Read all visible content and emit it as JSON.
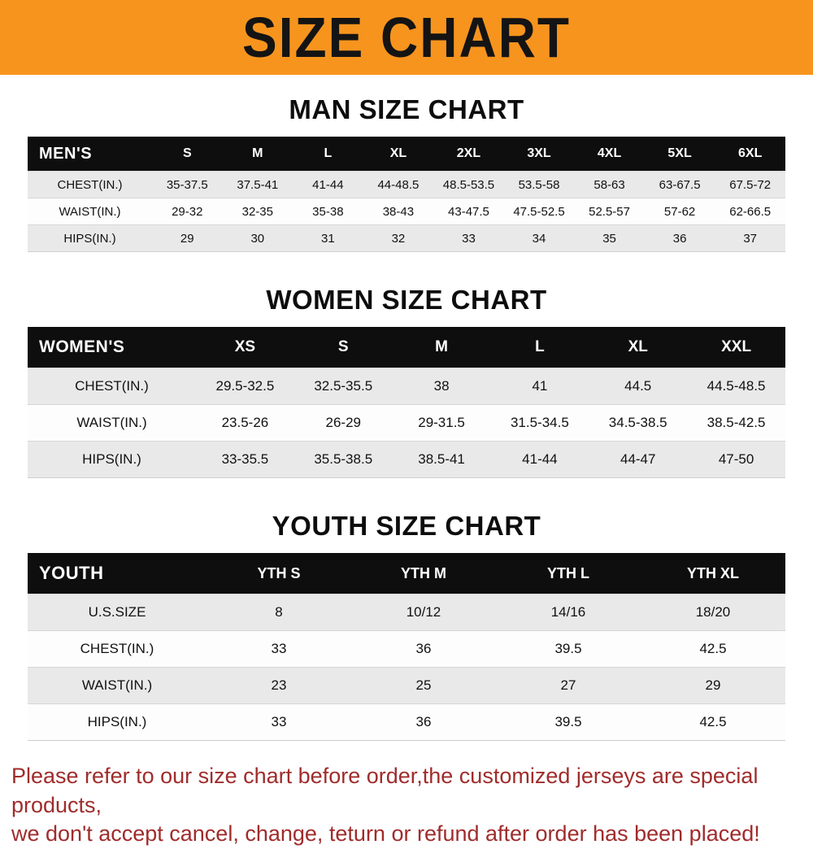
{
  "banner": {
    "title": "SIZE CHART"
  },
  "colors": {
    "banner_bg": "#F7941E",
    "table_header_bg": "#0E0E0E",
    "row_alt_bg": "#E9E9E9",
    "footer_text": "#A02C2C"
  },
  "sections": [
    {
      "key": "men",
      "heading": "MAN SIZE CHART",
      "table": {
        "header": [
          "MEN'S",
          "S",
          "M",
          "L",
          "XL",
          "2XL",
          "3XL",
          "4XL",
          "5XL",
          "6XL"
        ],
        "rows": [
          [
            "CHEST(IN.)",
            "35-37.5",
            "37.5-41",
            "41-44",
            "44-48.5",
            "48.5-53.5",
            "53.5-58",
            "58-63",
            "63-67.5",
            "67.5-72"
          ],
          [
            "WAIST(IN.)",
            "29-32",
            "32-35",
            "35-38",
            "38-43",
            "43-47.5",
            "47.5-52.5",
            "52.5-57",
            "57-62",
            "62-66.5"
          ],
          [
            "HIPS(IN.)",
            "29",
            "30",
            "31",
            "32",
            "33",
            "34",
            "35",
            "36",
            "37"
          ]
        ]
      }
    },
    {
      "key": "women",
      "heading": "WOMEN SIZE CHART",
      "table": {
        "header": [
          "WOMEN'S",
          "XS",
          "S",
          "M",
          "L",
          "XL",
          "XXL"
        ],
        "rows": [
          [
            "CHEST(IN.)",
            "29.5-32.5",
            "32.5-35.5",
            "38",
            "41",
            "44.5",
            "44.5-48.5"
          ],
          [
            "WAIST(IN.)",
            "23.5-26",
            "26-29",
            "29-31.5",
            "31.5-34.5",
            "34.5-38.5",
            "38.5-42.5"
          ],
          [
            "HIPS(IN.)",
            "33-35.5",
            "35.5-38.5",
            "38.5-41",
            "41-44",
            "44-47",
            "47-50"
          ]
        ]
      }
    },
    {
      "key": "youth",
      "heading": "YOUTH SIZE CHART",
      "table": {
        "header": [
          "YOUTH",
          "YTH S",
          "YTH M",
          "YTH L",
          "YTH XL"
        ],
        "rows": [
          [
            "U.S.SIZE",
            "8",
            "10/12",
            "14/16",
            "18/20"
          ],
          [
            "CHEST(IN.)",
            "33",
            "36",
            "39.5",
            "42.5"
          ],
          [
            "WAIST(IN.)",
            "23",
            "25",
            "27",
            "29"
          ],
          [
            "HIPS(IN.)",
            "33",
            "36",
            "39.5",
            "42.5"
          ]
        ]
      }
    }
  ],
  "footer": {
    "lines": [
      "Please refer to our size chart before order,the customized jerseys are special products,",
      "we don't accept cancel, change, teturn or refund after order has been placed!"
    ]
  }
}
